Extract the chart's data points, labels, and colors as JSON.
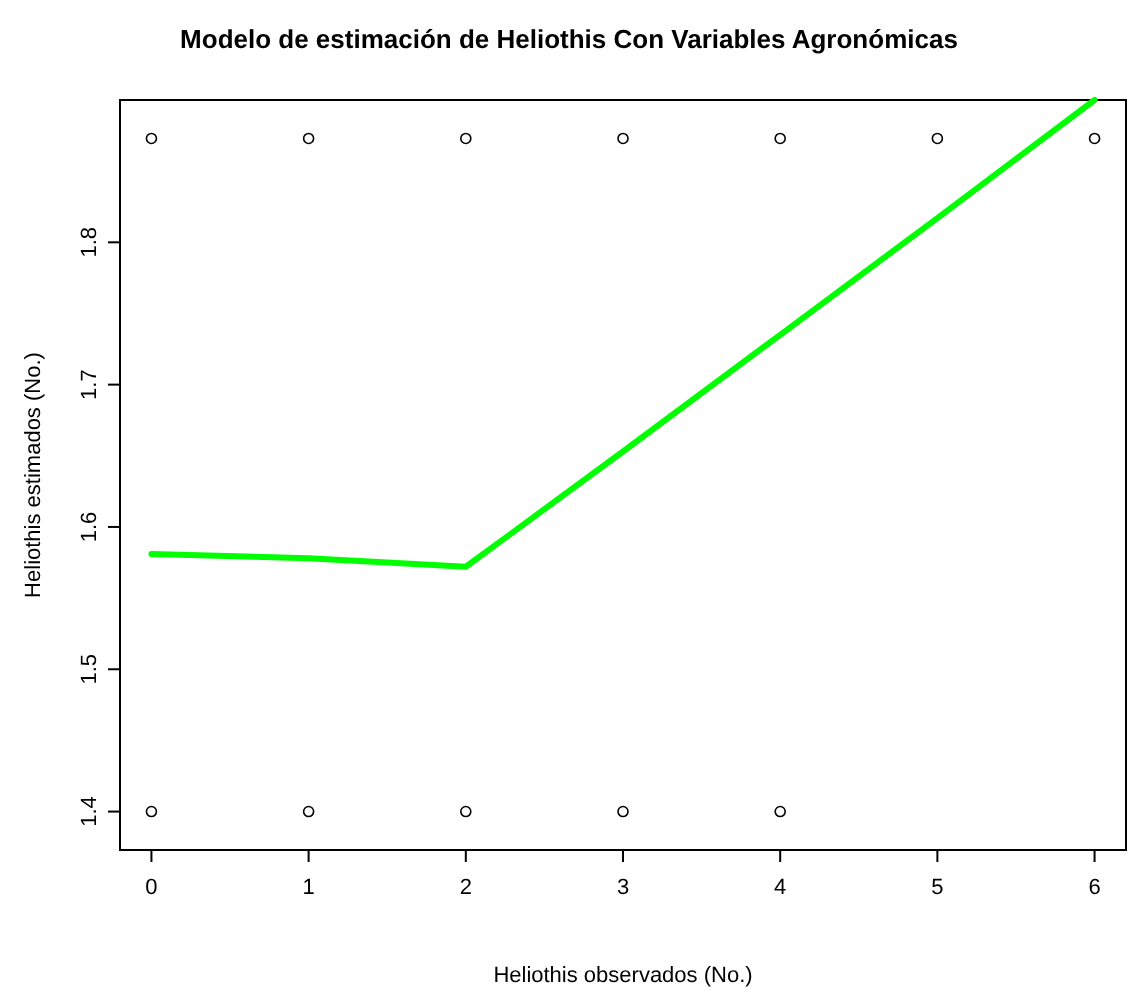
{
  "chart_data": {
    "type": "line",
    "title": "Modelo de estimación de Heliothis Con Variables Agronómicas",
    "xlabel": "Heliothis observados (No.)",
    "ylabel": "Heliothis estimados (No.)",
    "xlim": [
      -0.2,
      6.2
    ],
    "ylim": [
      1.373,
      1.9
    ],
    "xticks": [
      0,
      1,
      2,
      3,
      4,
      5,
      6
    ],
    "yticks": [
      1.4,
      1.5,
      1.6,
      1.7,
      1.8
    ],
    "grid": false,
    "series": [
      {
        "type": "scatter",
        "marker": "circle",
        "color": "#000000",
        "x": [
          0,
          1,
          2,
          3,
          4,
          5,
          6,
          0,
          1,
          2,
          3,
          4
        ],
        "values": [
          1.873,
          1.873,
          1.873,
          1.873,
          1.873,
          1.873,
          1.873,
          1.4,
          1.4,
          1.4,
          1.4,
          1.4
        ]
      },
      {
        "type": "line",
        "marker": "none",
        "color": "#00ff00",
        "x": [
          0,
          1,
          2,
          3,
          4,
          5,
          6
        ],
        "values": [
          1.581,
          1.578,
          1.572,
          1.653,
          1.735,
          1.817,
          1.9
        ]
      }
    ]
  }
}
